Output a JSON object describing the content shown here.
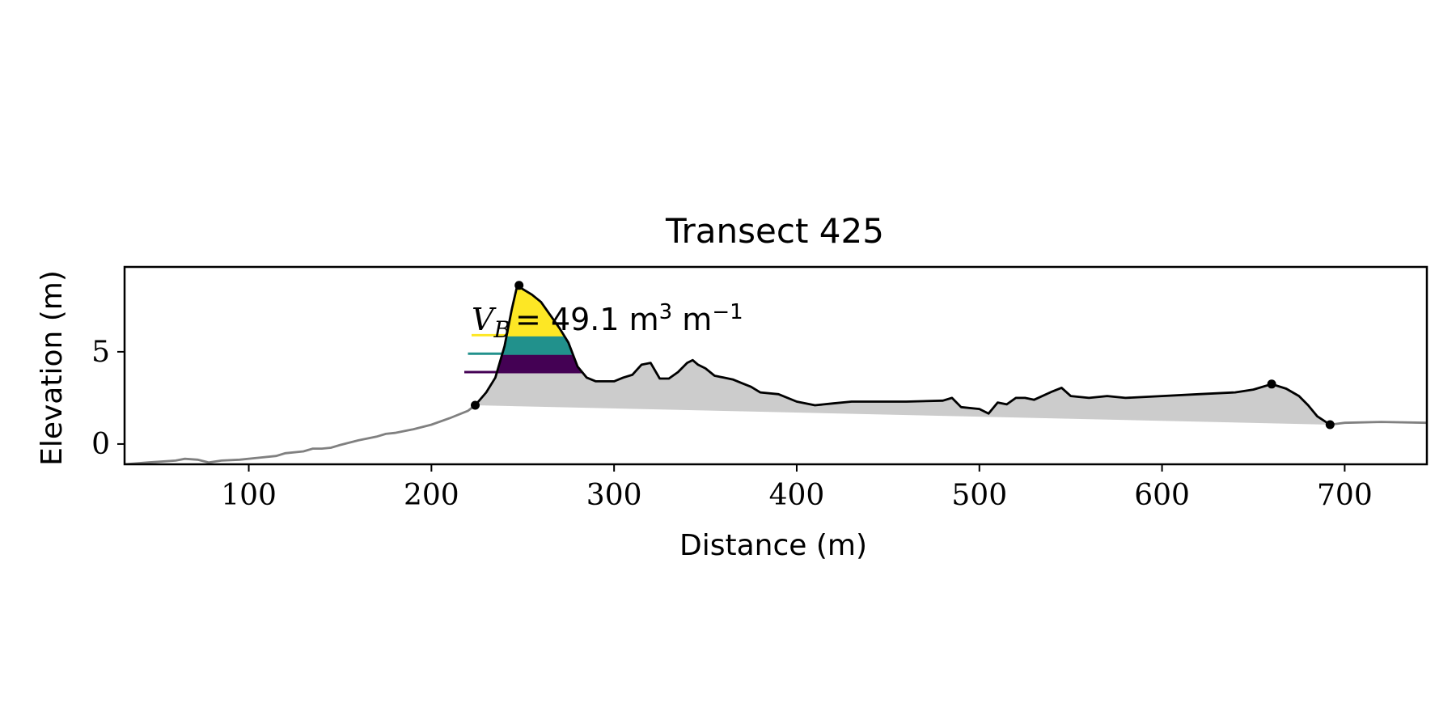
{
  "chart_data": {
    "type": "area",
    "title": "Transect 425",
    "xlabel": "Distance (m)",
    "ylabel": "Elevation (m)",
    "xlim": [
      32,
      745
    ],
    "ylim": [
      -1.1,
      9.6
    ],
    "xticks": [
      100,
      200,
      300,
      400,
      500,
      600,
      700
    ],
    "yticks": [
      0,
      5
    ],
    "grid": false,
    "annotation": {
      "symbol": "V",
      "subscript": "B",
      "value_text": "= 49.1 m",
      "unit_sup": "3",
      "unit_tail": " m",
      "unit_tail_sup": "−1"
    },
    "full_profile": {
      "x": [
        32,
        45,
        60,
        65,
        72,
        78,
        85,
        95,
        105,
        115,
        120,
        130,
        135,
        140,
        145,
        150,
        160,
        170,
        175,
        180,
        190,
        200,
        210,
        220,
        224
      ],
      "y": [
        -1.1,
        -1.0,
        -0.9,
        -0.8,
        -0.85,
        -1.0,
        -0.9,
        -0.85,
        -0.75,
        -0.65,
        -0.5,
        -0.4,
        -0.25,
        -0.25,
        -0.2,
        -0.05,
        0.2,
        0.4,
        0.55,
        0.6,
        0.8,
        1.05,
        1.4,
        1.8,
        2.1
      ]
    },
    "tail_profile": {
      "x": [
        692,
        700,
        720,
        745
      ],
      "y": [
        1.05,
        1.15,
        1.2,
        1.15
      ]
    },
    "dune_profile": {
      "x": [
        224,
        230,
        235,
        240,
        244,
        247,
        250,
        255,
        260,
        265,
        270,
        275,
        280,
        285,
        290,
        295,
        300,
        305,
        310,
        315,
        320,
        325,
        330,
        335,
        340,
        343,
        346,
        350,
        355,
        360,
        365,
        370,
        375,
        380,
        390,
        400,
        410,
        420,
        430,
        440,
        460,
        480,
        485,
        490,
        500,
        505,
        510,
        515,
        520,
        525,
        530,
        540,
        545,
        550,
        560,
        570,
        580,
        600,
        620,
        640,
        650,
        660,
        668,
        675,
        680,
        685,
        692
      ],
      "y": [
        2.1,
        2.8,
        3.6,
        5.3,
        7.3,
        8.6,
        8.4,
        8.1,
        7.7,
        7.0,
        6.3,
        5.5,
        4.2,
        3.6,
        3.4,
        3.4,
        3.4,
        3.6,
        3.75,
        4.3,
        4.4,
        3.55,
        3.55,
        3.9,
        4.4,
        4.55,
        4.3,
        4.1,
        3.7,
        3.6,
        3.5,
        3.3,
        3.1,
        2.8,
        2.7,
        2.3,
        2.1,
        2.2,
        2.3,
        2.3,
        2.3,
        2.35,
        2.5,
        2.0,
        1.9,
        1.65,
        2.25,
        2.15,
        2.5,
        2.5,
        2.4,
        2.85,
        3.05,
        2.6,
        2.5,
        2.6,
        2.5,
        2.6,
        2.7,
        2.8,
        2.95,
        3.25,
        3.0,
        2.6,
        2.1,
        1.5,
        1.05
      ]
    },
    "markers": [
      {
        "x": 224,
        "y": 2.1
      },
      {
        "x": 248,
        "y": 8.6
      },
      {
        "x": 660,
        "y": 3.25
      },
      {
        "x": 692,
        "y": 1.05
      }
    ],
    "baseline": {
      "x": [
        224,
        692
      ],
      "y": [
        2.1,
        1.05
      ]
    },
    "bands": [
      {
        "ymin": 3.9,
        "ymax": 4.9,
        "color": "#440154",
        "line_x0": 218
      },
      {
        "ymin": 4.9,
        "ymax": 5.9,
        "color": "#21918c",
        "line_x0": 220
      },
      {
        "ymin": 5.9,
        "ymax": 8.6,
        "color": "#fde725",
        "line_x0": 222
      }
    ],
    "colors": {
      "profile": "#808080",
      "dune": "#000000",
      "fill": "#cccccc",
      "band_low": "#440154",
      "band_mid": "#3b528b",
      "band_teal": "#21918c",
      "band_high": "#fde725"
    }
  }
}
